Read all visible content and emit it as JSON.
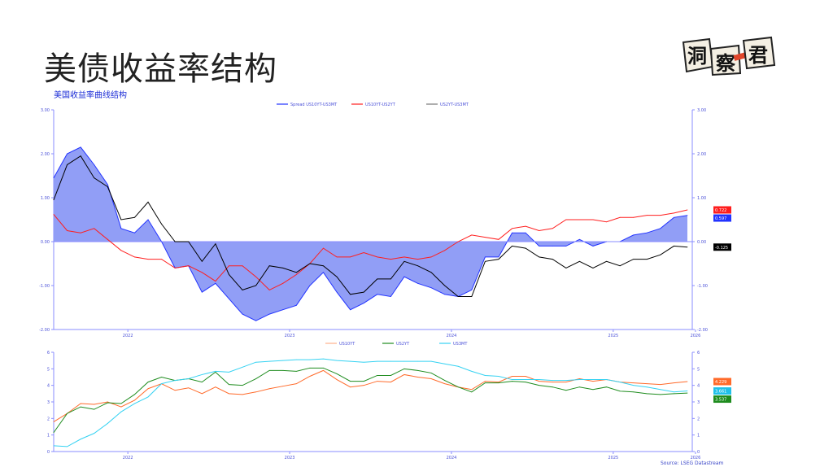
{
  "page": {
    "title": "美债收益率结构",
    "subtitle": "美国收益率曲线结构",
    "logo_text": "洞察君",
    "source": "Source: LSEG Datastream"
  },
  "colors": {
    "spread_10y3m_fill": "#919ef6",
    "spread_10y3m_line": "#2233ff",
    "spread_10y2y": "#ff1e1e",
    "spread_2y3m": "#000000",
    "us10yt": "#ff6a2a",
    "us2yt": "#1e8c1e",
    "us3mt": "#35d2f2",
    "axis": "#8a8cff",
    "tick_text": "#4a50d8"
  },
  "chart_data": [
    {
      "type": "area",
      "title": "",
      "x_ticks": [
        "2022",
        "2023",
        "2024",
        "2025",
        "2026"
      ],
      "ylim": [
        -2,
        3
      ],
      "y_ticks": [
        "-2.00",
        "-1.00",
        "0.00",
        "1.00",
        "2.00",
        "3.00"
      ],
      "legend_placement": "top-center",
      "grid": false,
      "dates": [
        "2022-02",
        "2022-03",
        "2022-04",
        "2022-05",
        "2022-06",
        "2022-07",
        "2022-08",
        "2022-09",
        "2022-10",
        "2022-11",
        "2022-12",
        "2023-01",
        "2023-02",
        "2023-03",
        "2023-04",
        "2023-05",
        "2023-06",
        "2023-07",
        "2023-08",
        "2023-09",
        "2023-10",
        "2023-11",
        "2023-12",
        "2024-01",
        "2024-02",
        "2024-03",
        "2024-04",
        "2024-05",
        "2024-06",
        "2024-07",
        "2024-08",
        "2024-09",
        "2024-10",
        "2024-11",
        "2024-12",
        "2025-01",
        "2025-02",
        "2025-03",
        "2025-04",
        "2025-05",
        "2025-06",
        "2025-07",
        "2025-08",
        "2025-09",
        "2025-10",
        "2025-11",
        "2025-12",
        "2026-01"
      ],
      "series": [
        {
          "name": "Spread US10YT-US3MT",
          "style": "area",
          "values": [
            1.45,
            2.0,
            2.15,
            1.75,
            1.3,
            0.3,
            0.2,
            0.5,
            0.0,
            -0.6,
            -0.55,
            -1.15,
            -0.95,
            -1.3,
            -1.65,
            -1.8,
            -1.65,
            -1.55,
            -1.45,
            -1.0,
            -0.7,
            -1.15,
            -1.55,
            -1.4,
            -1.2,
            -1.25,
            -0.8,
            -0.95,
            -1.05,
            -1.2,
            -1.25,
            -1.1,
            -0.35,
            -0.35,
            0.2,
            0.2,
            -0.1,
            -0.1,
            -0.1,
            0.05,
            -0.1,
            0.0,
            0.0,
            0.15,
            0.2,
            0.3,
            0.55,
            0.597
          ],
          "last_label": "0.597"
        },
        {
          "name": "US10YT-US2YT",
          "style": "line",
          "values": [
            0.62,
            0.25,
            0.2,
            0.3,
            0.05,
            -0.2,
            -0.35,
            -0.4,
            -0.4,
            -0.6,
            -0.55,
            -0.7,
            -0.9,
            -0.55,
            -0.55,
            -0.8,
            -1.1,
            -0.95,
            -0.75,
            -0.5,
            -0.15,
            -0.35,
            -0.35,
            -0.25,
            -0.35,
            -0.4,
            -0.35,
            -0.4,
            -0.35,
            -0.2,
            0.0,
            0.15,
            0.1,
            0.05,
            0.3,
            0.35,
            0.25,
            0.3,
            0.5,
            0.5,
            0.5,
            0.45,
            0.55,
            0.55,
            0.6,
            0.6,
            0.65,
            0.722
          ],
          "last_label": "0.722"
        },
        {
          "name": "US2YT-US3MT",
          "style": "line",
          "values": [
            0.95,
            1.75,
            1.95,
            1.45,
            1.25,
            0.5,
            0.55,
            0.9,
            0.4,
            0.0,
            0.0,
            -0.45,
            -0.05,
            -0.75,
            -1.1,
            -1.0,
            -0.55,
            -0.6,
            -0.7,
            -0.5,
            -0.55,
            -0.8,
            -1.2,
            -1.15,
            -0.85,
            -0.85,
            -0.45,
            -0.55,
            -0.7,
            -1.0,
            -1.25,
            -1.25,
            -0.45,
            -0.4,
            -0.1,
            -0.15,
            -0.35,
            -0.4,
            -0.6,
            -0.45,
            -0.6,
            -0.45,
            -0.55,
            -0.4,
            -0.4,
            -0.3,
            -0.1,
            -0.125
          ],
          "last_label": "-0.125"
        }
      ]
    },
    {
      "type": "line",
      "title": "",
      "x_ticks": [
        "2022",
        "2023",
        "2024",
        "2025",
        "2026"
      ],
      "ylim": [
        0,
        6
      ],
      "y_ticks": [
        "0",
        "1",
        "2",
        "3",
        "4",
        "5",
        "6"
      ],
      "legend_placement": "top-center",
      "grid": false,
      "dates": [
        "2022-02",
        "2022-03",
        "2022-04",
        "2022-05",
        "2022-06",
        "2022-07",
        "2022-08",
        "2022-09",
        "2022-10",
        "2022-11",
        "2022-12",
        "2023-01",
        "2023-02",
        "2023-03",
        "2023-04",
        "2023-05",
        "2023-06",
        "2023-07",
        "2023-08",
        "2023-09",
        "2023-10",
        "2023-11",
        "2023-12",
        "2024-01",
        "2024-02",
        "2024-03",
        "2024-04",
        "2024-05",
        "2024-06",
        "2024-07",
        "2024-08",
        "2024-09",
        "2024-10",
        "2024-11",
        "2024-12",
        "2025-01",
        "2025-02",
        "2025-03",
        "2025-04",
        "2025-05",
        "2025-06",
        "2025-07",
        "2025-08",
        "2025-09",
        "2025-10",
        "2025-11",
        "2025-12",
        "2026-01"
      ],
      "series": [
        {
          "name": "US10YT",
          "values": [
            1.8,
            2.3,
            2.9,
            2.85,
            3.0,
            2.7,
            3.1,
            3.8,
            4.1,
            3.7,
            3.85,
            3.5,
            3.9,
            3.5,
            3.45,
            3.6,
            3.8,
            3.95,
            4.1,
            4.55,
            4.9,
            4.35,
            3.9,
            4.0,
            4.25,
            4.2,
            4.65,
            4.5,
            4.4,
            4.1,
            3.9,
            3.75,
            4.25,
            4.2,
            4.55,
            4.55,
            4.25,
            4.2,
            4.2,
            4.4,
            4.25,
            4.35,
            4.2,
            4.15,
            4.1,
            4.05,
            4.15,
            4.229
          ],
          "last_label": "4.229"
        },
        {
          "name": "US2YT",
          "values": [
            1.15,
            2.3,
            2.7,
            2.55,
            2.95,
            2.9,
            3.45,
            4.2,
            4.5,
            4.3,
            4.4,
            4.2,
            4.8,
            4.05,
            4.0,
            4.4,
            4.9,
            4.9,
            4.85,
            5.05,
            5.05,
            4.7,
            4.25,
            4.25,
            4.6,
            4.6,
            5.0,
            4.9,
            4.75,
            4.3,
            3.9,
            3.6,
            4.15,
            4.15,
            4.25,
            4.2,
            4.0,
            3.9,
            3.7,
            3.9,
            3.75,
            3.9,
            3.65,
            3.6,
            3.5,
            3.45,
            3.5,
            3.537
          ],
          "last_label": "3.537"
        },
        {
          "name": "US3MT",
          "values": [
            0.35,
            0.3,
            0.75,
            1.1,
            1.7,
            2.4,
            2.9,
            3.3,
            4.1,
            4.3,
            4.4,
            4.65,
            4.85,
            4.8,
            5.1,
            5.4,
            5.45,
            5.5,
            5.55,
            5.55,
            5.6,
            5.5,
            5.45,
            5.4,
            5.45,
            5.45,
            5.45,
            5.45,
            5.45,
            5.3,
            5.15,
            4.85,
            4.6,
            4.55,
            4.35,
            4.35,
            4.35,
            4.3,
            4.3,
            4.35,
            4.35,
            4.35,
            4.2,
            4.0,
            3.9,
            3.75,
            3.6,
            3.661
          ],
          "last_label": "3.661"
        }
      ]
    }
  ]
}
